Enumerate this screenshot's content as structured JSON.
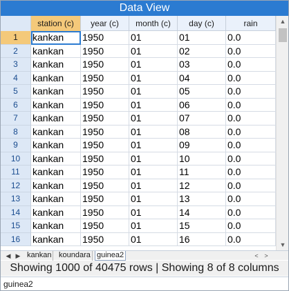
{
  "window": {
    "title": "Data View"
  },
  "columns": [
    {
      "label": "station (c)"
    },
    {
      "label": "year (c)"
    },
    {
      "label": "month (c)"
    },
    {
      "label": "day (c)"
    },
    {
      "label": "rain"
    }
  ],
  "rows": [
    {
      "num": "1",
      "cells": [
        "kankan",
        "1950",
        "01",
        "01",
        "0.0"
      ]
    },
    {
      "num": "2",
      "cells": [
        "kankan",
        "1950",
        "01",
        "02",
        "0.0"
      ]
    },
    {
      "num": "3",
      "cells": [
        "kankan",
        "1950",
        "01",
        "03",
        "0.0"
      ]
    },
    {
      "num": "4",
      "cells": [
        "kankan",
        "1950",
        "01",
        "04",
        "0.0"
      ]
    },
    {
      "num": "5",
      "cells": [
        "kankan",
        "1950",
        "01",
        "05",
        "0.0"
      ]
    },
    {
      "num": "6",
      "cells": [
        "kankan",
        "1950",
        "01",
        "06",
        "0.0"
      ]
    },
    {
      "num": "7",
      "cells": [
        "kankan",
        "1950",
        "01",
        "07",
        "0.0"
      ]
    },
    {
      "num": "8",
      "cells": [
        "kankan",
        "1950",
        "01",
        "08",
        "0.0"
      ]
    },
    {
      "num": "9",
      "cells": [
        "kankan",
        "1950",
        "01",
        "09",
        "0.0"
      ]
    },
    {
      "num": "10",
      "cells": [
        "kankan",
        "1950",
        "01",
        "10",
        "0.0"
      ]
    },
    {
      "num": "11",
      "cells": [
        "kankan",
        "1950",
        "01",
        "11",
        "0.0"
      ]
    },
    {
      "num": "12",
      "cells": [
        "kankan",
        "1950",
        "01",
        "12",
        "0.0"
      ]
    },
    {
      "num": "13",
      "cells": [
        "kankan",
        "1950",
        "01",
        "13",
        "0.0"
      ]
    },
    {
      "num": "14",
      "cells": [
        "kankan",
        "1950",
        "01",
        "14",
        "0.0"
      ]
    },
    {
      "num": "15",
      "cells": [
        "kankan",
        "1950",
        "01",
        "15",
        "0.0"
      ]
    },
    {
      "num": "16",
      "cells": [
        "kankan",
        "1950",
        "01",
        "16",
        "0.0"
      ]
    }
  ],
  "sheet_tabs": [
    {
      "label": "kankan"
    },
    {
      "label": "koundara"
    },
    {
      "label": "guinea2"
    }
  ],
  "active_tab": "guinea2",
  "status": {
    "summary": "Showing 1000 of 40475 rows | Showing 8 of 8 columns"
  },
  "footer": {
    "current_sheet": "guinea2"
  },
  "icons": {
    "scroll_up": "▲",
    "scroll_down": "▼",
    "tab_prev": "◀",
    "tab_next": "▶",
    "hscroll_left": "<",
    "hscroll_right": ">"
  },
  "colors": {
    "title_bar": "#2b7bd1",
    "header_bg": "#eaf1fb",
    "rownum_bg": "#dde8f6",
    "active_highlight": "#f4c97a"
  }
}
